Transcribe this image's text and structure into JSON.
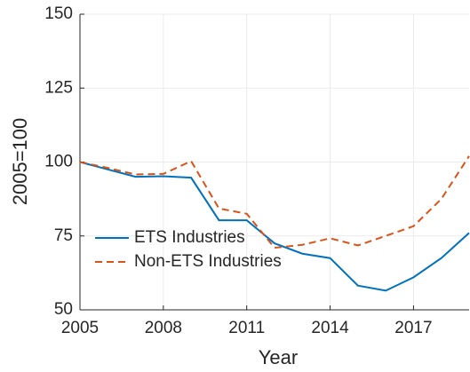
{
  "chart_data": {
    "type": "line",
    "x": [
      2005,
      2006,
      2007,
      2008,
      2009,
      2010,
      2011,
      2012,
      2013,
      2014,
      2015,
      2016,
      2017,
      2018,
      2019
    ],
    "series": [
      {
        "name": "ETS Industries",
        "color": "#0072BD",
        "dash": false,
        "values": [
          100,
          97.5,
          95,
          95.2,
          94.7,
          80.3,
          80.3,
          72.5,
          69,
          67.5,
          58.2,
          56.5,
          61,
          67.5,
          76
        ]
      },
      {
        "name": "Non-ETS Industries",
        "color": "#D95319",
        "dash": true,
        "values": [
          100,
          98,
          95.8,
          96,
          100.3,
          84.3,
          82.5,
          71,
          72,
          74.2,
          71.8,
          75,
          78.3,
          87.5,
          102
        ]
      }
    ],
    "xlabel": "Year",
    "ylabel": "2005=100",
    "xlim": [
      2005,
      2019
    ],
    "xticks": [
      2005,
      2008,
      2011,
      2014,
      2017
    ],
    "ylim": [
      50,
      150
    ],
    "yticks": [
      50,
      75,
      100,
      125,
      150
    ],
    "grid": true,
    "legend": "lower-left"
  }
}
